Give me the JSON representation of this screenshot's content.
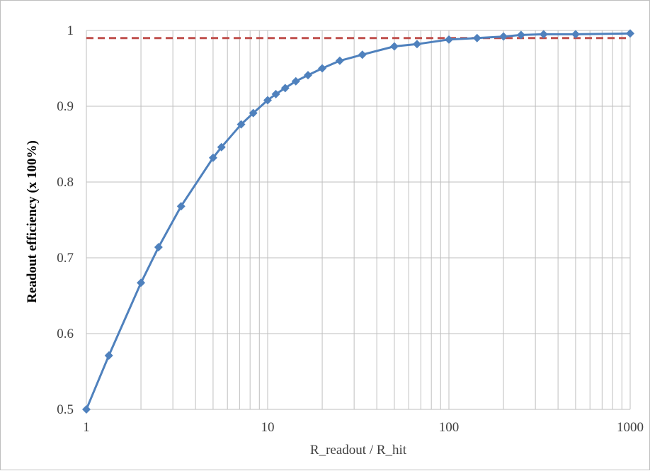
{
  "chart_data": {
    "type": "line",
    "x_scale": "log",
    "xlim": [
      1,
      1000
    ],
    "ylim": [
      0.5,
      1.0
    ],
    "x_ticks": [
      "1",
      "10",
      "100",
      "1000"
    ],
    "y_ticks": [
      "0.5",
      "0.6",
      "0.7",
      "0.8",
      "0.9",
      "1"
    ],
    "xlabel": "R_readout / R_hit",
    "ylabel": "Readout efficiency (x 100%)",
    "grid": true,
    "colors": {
      "series": "#4f81bd",
      "reference": "#c0504d",
      "grid": "#bfbfbf"
    },
    "series": [
      {
        "x": [
          1,
          1.33,
          2,
          2.5,
          3.33,
          5,
          5.56,
          7.14,
          8.33,
          10,
          11.1,
          12.5,
          14.3,
          16.7,
          20,
          25,
          33.3,
          50,
          66.7,
          100,
          143,
          200,
          250,
          333,
          500,
          1000
        ],
        "y": [
          0.5,
          0.571,
          0.667,
          0.714,
          0.768,
          0.832,
          0.846,
          0.876,
          0.891,
          0.908,
          0.916,
          0.924,
          0.933,
          0.941,
          0.95,
          0.96,
          0.968,
          0.979,
          0.982,
          0.988,
          0.99,
          0.992,
          0.994,
          0.995,
          0.995,
          0.996
        ],
        "marker": "diamond"
      }
    ],
    "reference_line": {
      "y": 0.99,
      "style": "dashed"
    }
  }
}
